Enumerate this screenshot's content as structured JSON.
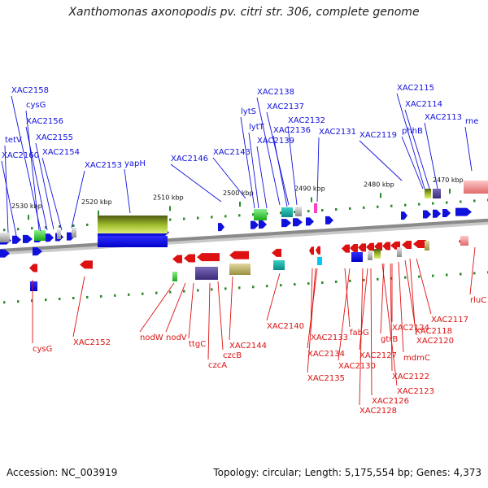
{
  "header": {
    "title": "Xanthomonas axonopodis pv. citri str. 306, complete genome"
  },
  "footer": {
    "accession": "Accession: NC_003919",
    "summary": "Topology: circular; Length: 5,175,554 bp; Genes: 4,373"
  },
  "colors": {
    "forward": "#1111dd",
    "reverse": "#dd1111",
    "backbone": "#8a8a8a",
    "tick": "#2a8a2a",
    "axis_text": "#111111"
  },
  "scale_labels": [
    "2530 kbp",
    "2520 kbp",
    "2510 kbp",
    "2500 kbp",
    "2490 kbp",
    "2480 kbp",
    "2470 kbp"
  ],
  "forward_labels": [
    "XAC2158",
    "cysG",
    "XAC2156",
    "XAC2155",
    "tetV",
    "XAC2160",
    "XAC2154",
    "XAC2153",
    "yapH",
    "XAC2146",
    "XAC2143",
    "lytS",
    "XAC2138",
    "XAC2137",
    "lytT",
    "XAC2136",
    "XAC2132",
    "XAC2139",
    "XAC2131",
    "XAC2119",
    "XAC2115",
    "XAC2114",
    "phhB",
    "XAC2113",
    "rne"
  ],
  "reverse_labels": [
    "cysG",
    "XAC2152",
    "nodW",
    "nodV",
    "ttgC",
    "czcA",
    "czcB",
    "XAC2144",
    "XAC2140",
    "XAC2133",
    "XAC2134",
    "XAC2135",
    "fabG",
    "XAC2130",
    "gtrB",
    "XAC2127",
    "XAC2124",
    "XAC2126",
    "XAC2128",
    "XAC2120",
    "XAC2118",
    "XAC2117",
    "mdmC",
    "XAC2122",
    "XAC2123",
    "rluC"
  ]
}
